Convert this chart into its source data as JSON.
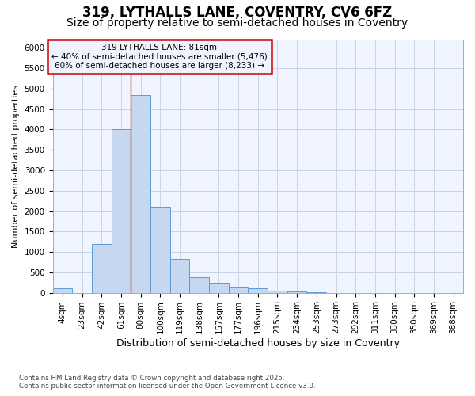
{
  "title_line1": "319, LYTHALLS LANE, COVENTRY, CV6 6FZ",
  "title_line2": "Size of property relative to semi-detached houses in Coventry",
  "xlabel": "Distribution of semi-detached houses by size in Coventry",
  "ylabel": "Number of semi-detached properties",
  "annotation_title": "319 LYTHALLS LANE: 81sqm",
  "annotation_line2": "← 40% of semi-detached houses are smaller (5,476)",
  "annotation_line3": "60% of semi-detached houses are larger (8,233) →",
  "footer_line1": "Contains HM Land Registry data © Crown copyright and database right 2025.",
  "footer_line2": "Contains public sector information licensed under the Open Government Licence v3.0.",
  "bar_color": "#c5d8f0",
  "bar_edge_color": "#5b9bd5",
  "vline_color": "#cc0000",
  "annotation_box_edge_color": "#cc0000",
  "plot_bg_color": "#f0f4ff",
  "fig_bg_color": "#ffffff",
  "grid_color": "#c8d4e8",
  "categories": [
    "4sqm",
    "23sqm",
    "42sqm",
    "61sqm",
    "80sqm",
    "100sqm",
    "119sqm",
    "138sqm",
    "157sqm",
    "177sqm",
    "196sqm",
    "215sqm",
    "234sqm",
    "253sqm",
    "273sqm",
    "292sqm",
    "311sqm",
    "330sqm",
    "350sqm",
    "369sqm",
    "388sqm"
  ],
  "values": [
    100,
    0,
    1200,
    4000,
    4850,
    2100,
    820,
    380,
    250,
    130,
    100,
    50,
    30,
    20,
    0,
    0,
    0,
    0,
    0,
    0,
    0
  ],
  "ylim": [
    0,
    6200
  ],
  "yticks": [
    0,
    500,
    1000,
    1500,
    2000,
    2500,
    3000,
    3500,
    4000,
    4500,
    5000,
    5500,
    6000
  ],
  "vline_position": 3.5,
  "title_fontsize": 12,
  "subtitle_fontsize": 10,
  "tick_fontsize": 7.5,
  "ylabel_fontsize": 8,
  "xlabel_fontsize": 9
}
